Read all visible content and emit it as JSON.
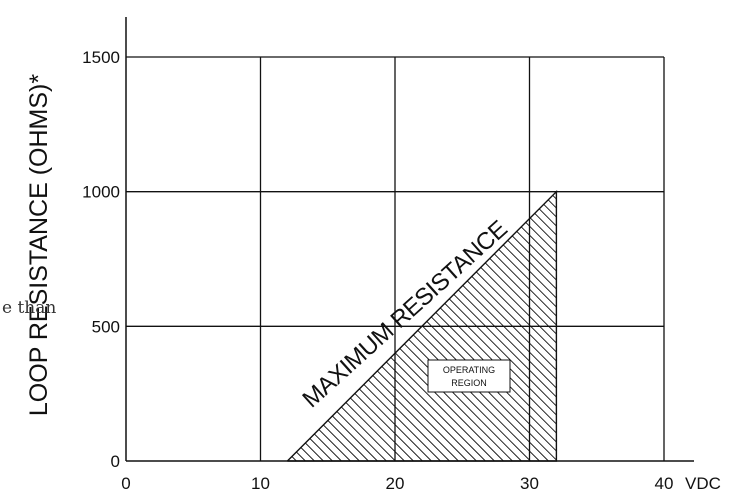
{
  "chart_data": {
    "type": "area",
    "ylabel": "LOOP RESISTANCE (OHMS)*",
    "x_unit_label": "VDC",
    "x_ticks": [
      0,
      10,
      20,
      30,
      40
    ],
    "y_ticks": [
      0,
      500,
      1000,
      1500
    ],
    "xlim": [
      0,
      40
    ],
    "ylim": [
      0,
      1500
    ],
    "grid": true,
    "series": [
      {
        "name": "MAXIMUM RESISTANCE",
        "x": [
          12,
          32,
          32
        ],
        "y": [
          0,
          1000,
          0
        ]
      }
    ],
    "annotations": {
      "diagonal_label": "MAXIMUM RESISTANCE",
      "region_label_line1": "OPERATING",
      "region_label_line2": "REGION"
    },
    "stray_text": "e  than"
  }
}
